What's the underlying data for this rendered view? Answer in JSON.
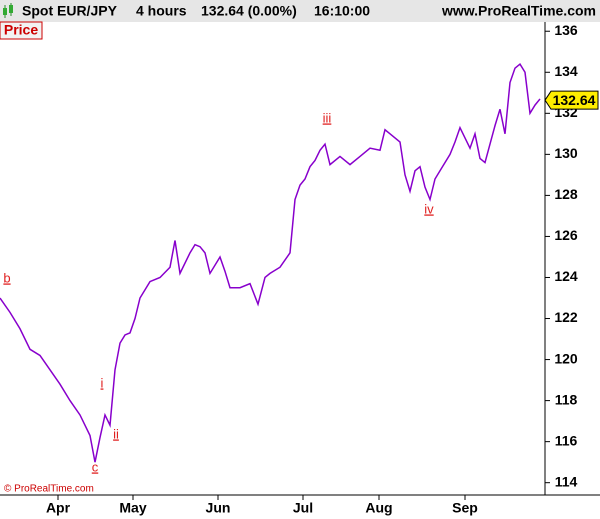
{
  "chart_data": {
    "type": "line",
    "title": "Spot EUR/JPY",
    "interval": "4 hours",
    "change": "132.64 (0.00%)",
    "time": "16:10:00",
    "site": "www.ProRealTime.com",
    "panel_label": "Price",
    "copyright": "© ProRealTime.com",
    "last_value": 132.64,
    "annotations": [
      "b",
      "c",
      "i",
      "ii",
      "iii",
      "iv"
    ],
    "x": [
      0,
      10,
      20,
      30,
      40,
      50,
      60,
      70,
      80,
      90,
      95,
      100,
      105,
      110,
      115,
      120,
      125,
      130,
      135,
      140,
      150,
      160,
      170,
      175,
      180,
      190,
      195,
      200,
      205,
      210,
      220,
      225,
      230,
      240,
      250,
      258,
      265,
      270,
      280,
      290,
      295,
      300,
      305,
      310,
      315,
      320,
      325,
      330,
      340,
      350,
      360,
      370,
      380,
      385,
      390,
      400,
      405,
      410,
      415,
      420,
      425,
      430,
      435,
      440,
      450,
      455,
      460,
      465,
      470,
      475,
      480,
      485,
      490,
      495,
      500,
      505,
      510,
      515,
      520,
      525,
      530,
      535,
      540
    ],
    "series": [
      {
        "name": "Price",
        "color": "#8800cc",
        "values": [
          123,
          122.3,
          121.5,
          120.5,
          120.2,
          119.5,
          118.8,
          118,
          117.3,
          116.3,
          115,
          116.2,
          117.3,
          116.8,
          119.5,
          120.8,
          121.2,
          121.3,
          122,
          123,
          123.8,
          124,
          124.5,
          125.8,
          124.2,
          125.2,
          125.6,
          125.5,
          125.2,
          124.2,
          125,
          124.3,
          123.5,
          123.5,
          123.7,
          122.7,
          124,
          124.2,
          124.5,
          125.2,
          127.8,
          128.5,
          128.8,
          129.4,
          129.7,
          130.2,
          130.5,
          129.5,
          129.9,
          129.5,
          129.9,
          130.3,
          130.2,
          131.2,
          131,
          130.6,
          129,
          128.2,
          129.2,
          129.4,
          128.4,
          127.8,
          128.8,
          129.2,
          130,
          130.6,
          131.3,
          130.8,
          130.3,
          131,
          129.8,
          129.6,
          130.5,
          131.4,
          132.2,
          131,
          133.5,
          134.2,
          134.4,
          134,
          132,
          132.4,
          132.7
        ]
      }
    ],
    "xlim": [
      0,
      545
    ],
    "xticks": [
      {
        "value": 58,
        "label": "Apr"
      },
      {
        "value": 133,
        "label": "May"
      },
      {
        "value": 218,
        "label": "Jun"
      },
      {
        "value": 303,
        "label": "Jul"
      },
      {
        "value": 379,
        "label": "Aug"
      },
      {
        "value": 465,
        "label": "Sep"
      }
    ],
    "ylim": [
      113.4,
      136.45
    ],
    "yticks": [
      114,
      116,
      118,
      120,
      122,
      124,
      126,
      128,
      130,
      132,
      134,
      136
    ]
  }
}
